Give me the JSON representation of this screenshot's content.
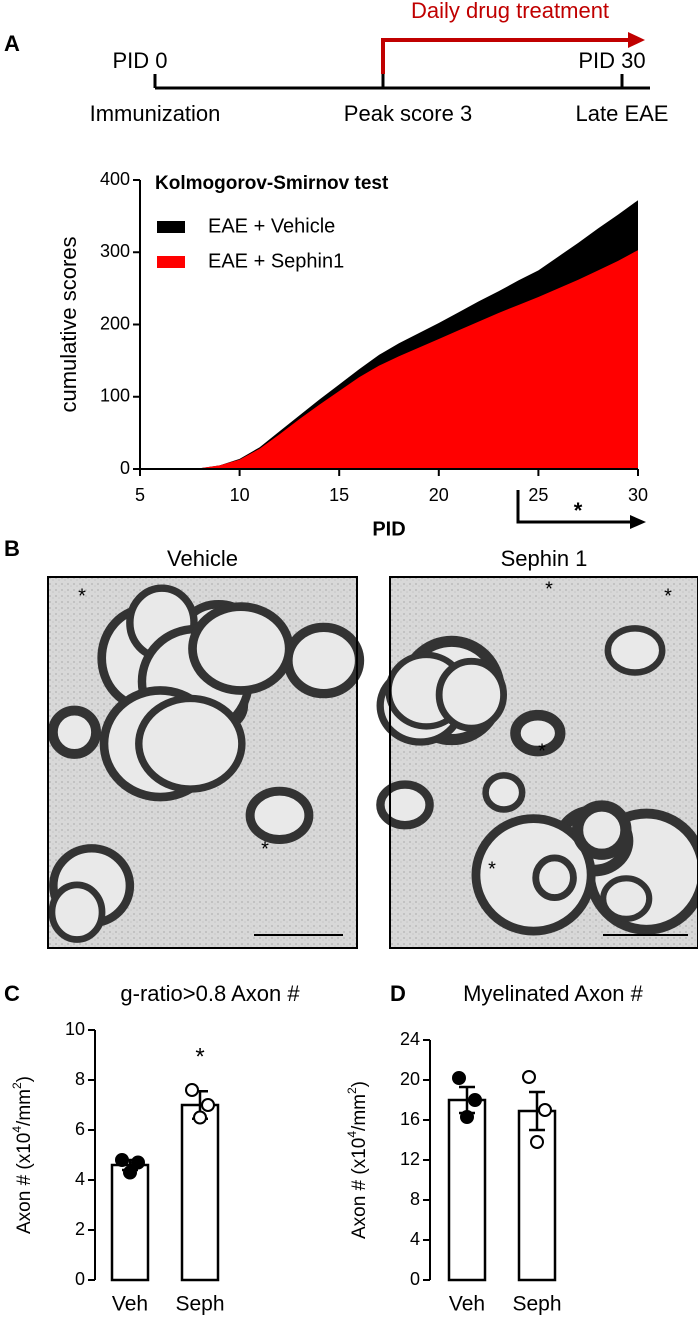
{
  "panels": [
    "A",
    "B",
    "C",
    "D"
  ],
  "timeline": {
    "start": "PID 0",
    "end": "PID 30",
    "stages": [
      "Immunization",
      "Peak score 3",
      "Late EAE"
    ],
    "treatment": "Daily drug treatment"
  },
  "micrographs": [
    {
      "title": "Vehicle",
      "markers": [
        "*",
        "*"
      ]
    },
    {
      "title": "Sephin 1",
      "markers": [
        "*",
        "*",
        "*",
        "*"
      ]
    }
  ],
  "chart_data": [
    {
      "type": "area",
      "title": "Kolmogorov-Smirnov test",
      "x_label": "PID",
      "y_label": "cumulative scores",
      "x": [
        5,
        6,
        7,
        8,
        9,
        10,
        11,
        12,
        13,
        14,
        15,
        16,
        17,
        18,
        19,
        20,
        21,
        22,
        23,
        24,
        25,
        26,
        27,
        28,
        29,
        30
      ],
      "series": [
        {
          "name": "EAE + Vehicle",
          "color": "#000000",
          "values": [
            0,
            0,
            0,
            1,
            5,
            14,
            30,
            52,
            74,
            96,
            117,
            138,
            158,
            174,
            188,
            202,
            217,
            232,
            246,
            261,
            275,
            294,
            313,
            333,
            352,
            372
          ]
        },
        {
          "name": "EAE + Sephin1",
          "color": "#ff0000",
          "values": [
            0,
            0,
            0,
            1,
            5,
            13,
            28,
            48,
            69,
            89,
            108,
            127,
            143,
            156,
            168,
            180,
            192,
            204,
            216,
            227,
            238,
            250,
            262,
            275,
            288,
            303
          ]
        }
      ],
      "xlim": [
        5,
        30
      ],
      "xticks": [
        5,
        10,
        15,
        20,
        25,
        30
      ],
      "ylim": [
        0,
        400
      ],
      "yticks": [
        0,
        100,
        200,
        300,
        400
      ],
      "annotation": "*"
    },
    {
      "type": "bar",
      "title": "g-ratio>0.8 Axon #",
      "y_label": [
        "Axon # (x10",
        "4",
        "/mm",
        "2",
        ")"
      ],
      "categories": [
        "Veh",
        "Seph"
      ],
      "values": [
        4.6,
        7.0
      ],
      "errors": [
        0.2,
        0.55
      ],
      "points": [
        [
          4.8,
          4.7,
          4.3
        ],
        [
          7.6,
          7.0,
          6.5
        ]
      ],
      "point_fill": [
        "#000000",
        "#ffffff"
      ],
      "ylim": [
        0,
        10
      ],
      "yticks": [
        0,
        2,
        4,
        6,
        8,
        10
      ],
      "annotation": "*"
    },
    {
      "type": "bar",
      "title": "Myelinated Axon #",
      "y_label": [
        "Axon # (x10",
        "4",
        "/mm",
        "2",
        ")"
      ],
      "categories": [
        "Veh",
        "Seph"
      ],
      "values": [
        18.0,
        16.9
      ],
      "errors": [
        1.3,
        1.9
      ],
      "points": [
        [
          20.2,
          18.0,
          16.3
        ],
        [
          20.3,
          17.0,
          13.8
        ]
      ],
      "point_fill": [
        "#000000",
        "#ffffff"
      ],
      "ylim": [
        0,
        24
      ],
      "yticks": [
        0,
        4,
        8,
        12,
        16,
        20,
        24
      ]
    }
  ]
}
